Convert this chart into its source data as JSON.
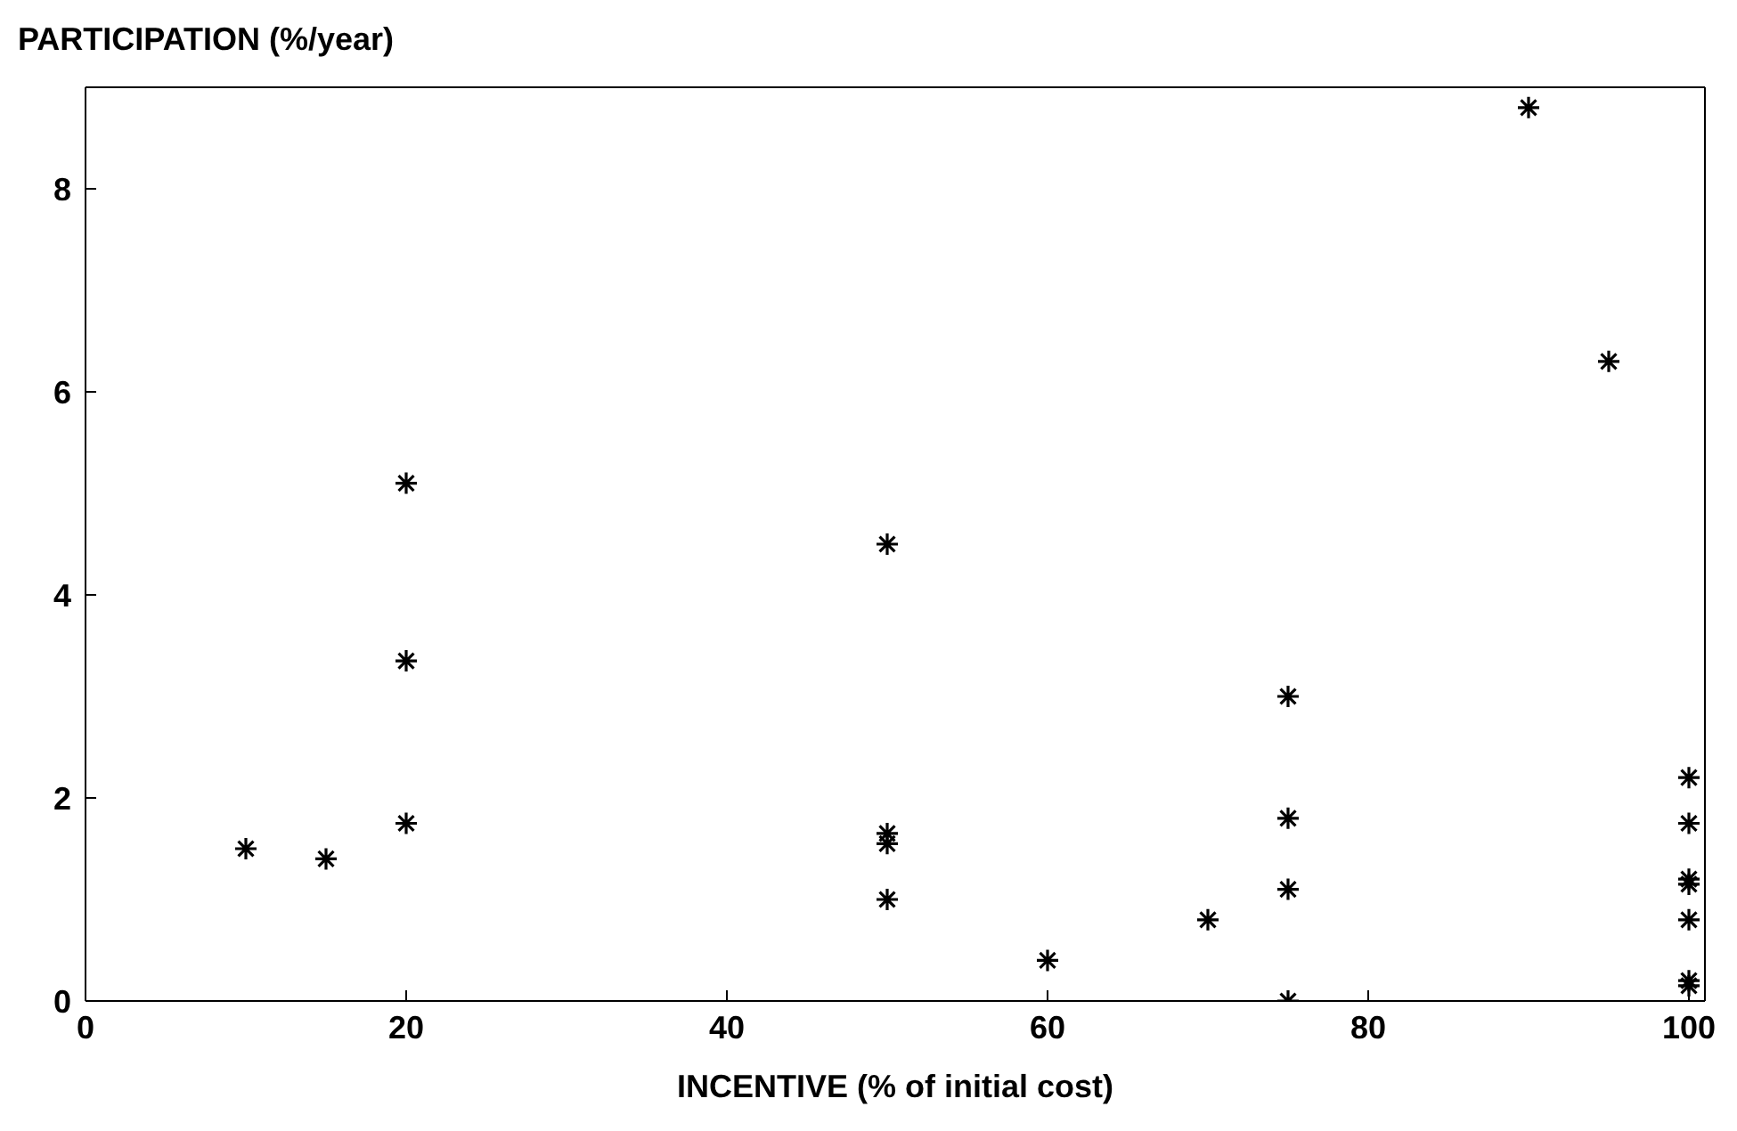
{
  "chart_data": {
    "type": "scatter",
    "xlabel": "INCENTIVE (% of initial cost)",
    "ylabel": "PARTICIPATION (%/year)",
    "xlim": [
      0,
      101
    ],
    "xticks": [
      0,
      20,
      40,
      60,
      80,
      100
    ],
    "ylim": [
      0,
      9
    ],
    "yticks": [
      0,
      2,
      4,
      6,
      8
    ],
    "grid": false,
    "legend": false,
    "marker": "cross",
    "series": [
      {
        "color": "#000000",
        "x": [
          10,
          15,
          20,
          20,
          20,
          50,
          50,
          50,
          50,
          60,
          70,
          75,
          75,
          75,
          75,
          90,
          95,
          100,
          100,
          100,
          100,
          100,
          100,
          100
        ],
        "values": [
          1.5,
          1.4,
          5.1,
          3.35,
          1.75,
          4.5,
          1.65,
          1.55,
          1.0,
          0.4,
          0.8,
          3.0,
          1.8,
          1.1,
          0.0,
          8.8,
          6.3,
          2.2,
          1.75,
          1.2,
          1.15,
          0.8,
          0.2,
          0.15
        ]
      }
    ]
  }
}
